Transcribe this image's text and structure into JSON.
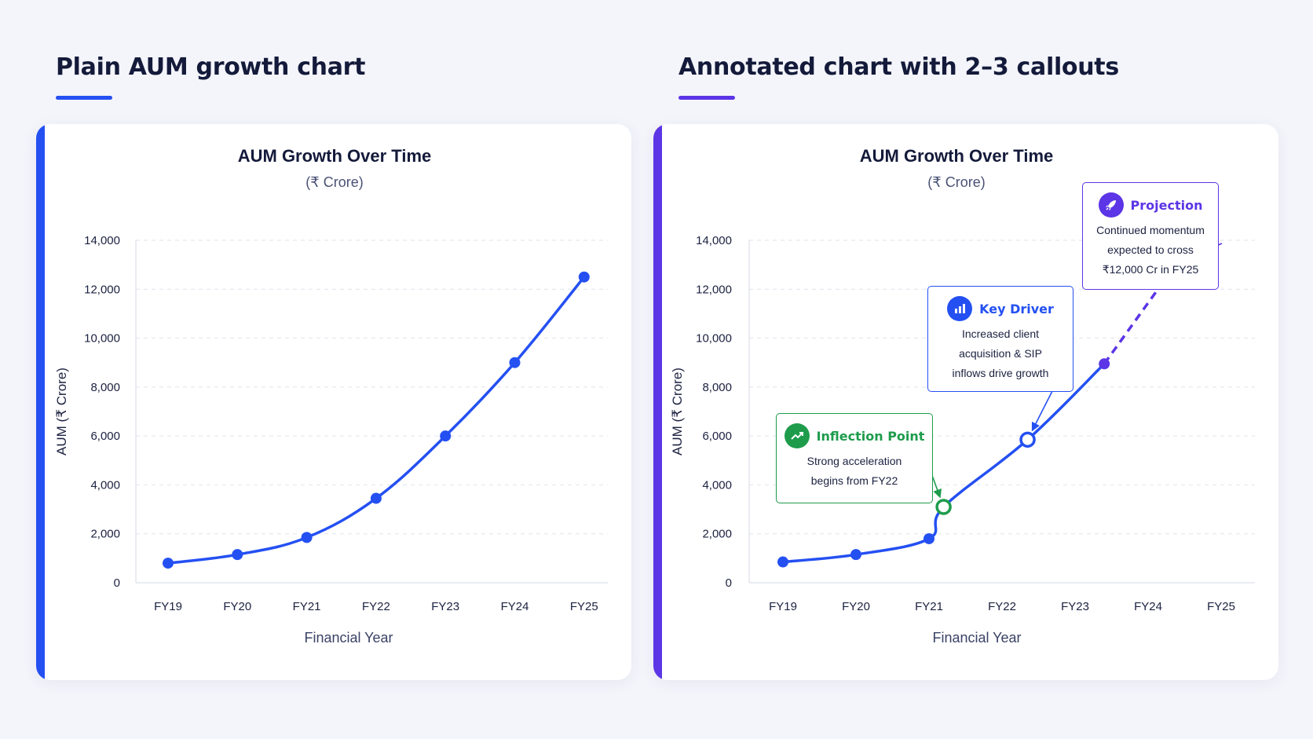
{
  "left_section": {
    "title": "Plain AUM growth chart",
    "accent_color": "#2450f2"
  },
  "right_section": {
    "title": "Annotated chart with 2–3 callouts",
    "accent_color": "#5b35e6"
  },
  "chart_data": [
    {
      "type": "line",
      "title": "AUM Growth Over Time",
      "subtitle": "(₹ Crore)",
      "xlabel": "Financial Year",
      "ylabel": "AUM (₹ Crore)",
      "categories": [
        "FY19",
        "FY20",
        "FY21",
        "FY22",
        "FY23",
        "FY24",
        "FY25"
      ],
      "values": [
        800,
        1150,
        1850,
        3450,
        6000,
        9000,
        12500
      ],
      "ylim": [
        0,
        14000
      ],
      "yticks": [
        0,
        2000,
        4000,
        6000,
        8000,
        10000,
        12000,
        14000
      ],
      "ytick_labels": [
        "0",
        "2,000",
        "4,000",
        "6,000",
        "8,000",
        "10,000",
        "12,000",
        "14,000"
      ],
      "grid": true,
      "line_color": "#2450f2"
    },
    {
      "type": "line",
      "title": "AUM Growth Over Time",
      "subtitle": "(₹ Crore)",
      "xlabel": "Financial Year",
      "ylabel": "AUM (₹ Crore)",
      "categories": [
        "FY19",
        "FY20",
        "FY21",
        "FY22",
        "FY23",
        "FY24",
        "FY25"
      ],
      "points": [
        {
          "x": 0,
          "y": 850
        },
        {
          "x": 1,
          "y": 1150
        },
        {
          "x": 2,
          "y": 1800
        },
        {
          "x": 2.2,
          "y": 3100
        },
        {
          "x": 3.35,
          "y": 5850
        },
        {
          "x": 4.4,
          "y": 8950
        },
        {
          "x": 5.4,
          "y": 13100
        }
      ],
      "projection_from_index": 5,
      "ylim": [
        0,
        14000
      ],
      "yticks": [
        0,
        2000,
        4000,
        6000,
        8000,
        10000,
        12000,
        14000
      ],
      "ytick_labels": [
        "0",
        "2,000",
        "4,000",
        "6,000",
        "8,000",
        "10,000",
        "12,000",
        "14,000"
      ],
      "grid": true,
      "line_color": "#2450f2",
      "projection_color": "#5b35e6",
      "callouts": [
        {
          "title": "Inflection Point",
          "lines": [
            "Strong acceleration",
            "begins from FY22"
          ],
          "color": "#1e9c4c",
          "icon": "trend-up-icon",
          "target_index": 3
        },
        {
          "title": "Key Driver",
          "lines": [
            "Increased client",
            "acquisition & SIP",
            "inflows drive growth"
          ],
          "color": "#2450f2",
          "icon": "bar-chart-icon",
          "target_index": 4
        },
        {
          "title": "Projection",
          "lines": [
            "Continued momentum",
            "expected to cross",
            "₹12,000 Cr in FY25"
          ],
          "color": "#5b35e6",
          "icon": "rocket-icon",
          "target_index": 6
        }
      ]
    }
  ]
}
